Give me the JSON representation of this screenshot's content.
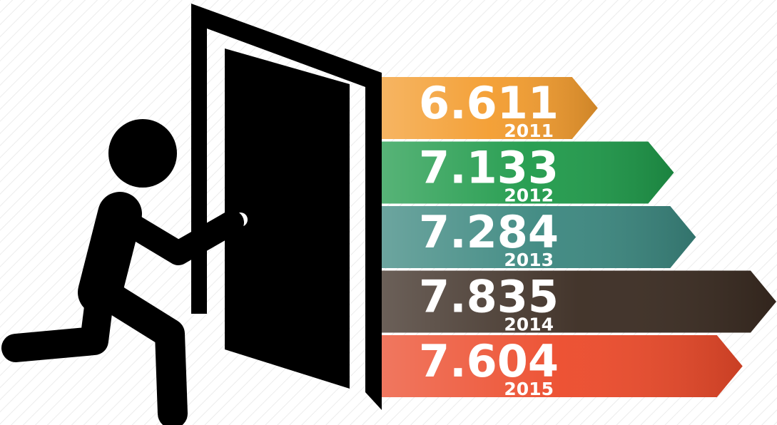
{
  "chart_data": {
    "type": "bar",
    "orientation": "horizontal",
    "categories": [
      "2011",
      "2012",
      "2013",
      "2014",
      "2015"
    ],
    "values": [
      6.611,
      7.133,
      7.284,
      7.835,
      7.604
    ],
    "colors": [
      "#f39c2e",
      "#1f9a4a",
      "#3b877f",
      "#3a2b21",
      "#ec4a2a"
    ],
    "xlim": [
      5.13,
      7.84
    ]
  }
}
